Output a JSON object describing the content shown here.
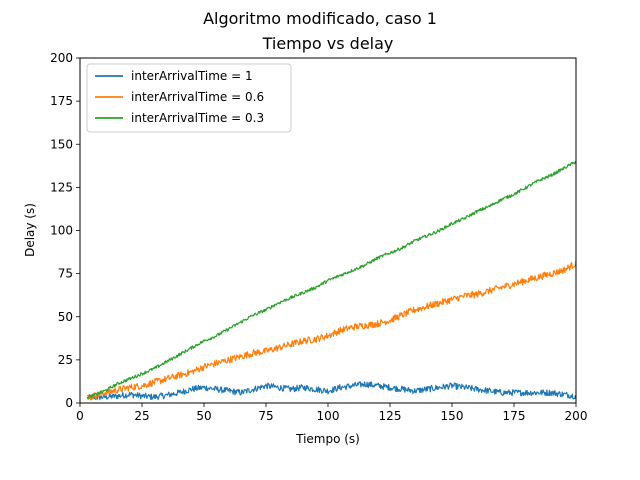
{
  "chart_data": {
    "type": "line",
    "suptitle": "Algoritmo modificado, caso 1",
    "title": "Tiempo vs delay",
    "xlabel": "Tiempo (s)",
    "ylabel": "Delay (s)",
    "xlim": [
      0,
      200
    ],
    "ylim": [
      0,
      200
    ],
    "xticks": [
      0,
      25,
      50,
      75,
      100,
      125,
      150,
      175,
      200
    ],
    "yticks": [
      0,
      25,
      50,
      75,
      100,
      125,
      150,
      175,
      200
    ],
    "grid": false,
    "legend_position": "top-left",
    "series": [
      {
        "name": "interArrivalTime = 1",
        "color": "#1f77b4",
        "x": [
          3,
          10,
          15,
          20,
          25,
          30,
          35,
          40,
          45,
          50,
          55,
          60,
          65,
          70,
          75,
          80,
          85,
          90,
          95,
          100,
          105,
          110,
          115,
          120,
          125,
          130,
          135,
          140,
          145,
          150,
          155,
          160,
          165,
          170,
          175,
          180,
          185,
          190,
          195,
          200
        ],
        "y": [
          3,
          3.5,
          4,
          5,
          4,
          3.5,
          4.5,
          6,
          8,
          9,
          8,
          7,
          6,
          8,
          10,
          9,
          8,
          9,
          8,
          7,
          9,
          10,
          11,
          10,
          9,
          8,
          7,
          8,
          9,
          10,
          9,
          8,
          7,
          6,
          6,
          6,
          6,
          6,
          5,
          4
        ],
        "noise": 1.8
      },
      {
        "name": "interArrivalTime = 0.6",
        "color": "#ff7f0e",
        "x": [
          3,
          10,
          15,
          20,
          25,
          30,
          35,
          40,
          45,
          50,
          55,
          60,
          65,
          70,
          75,
          80,
          85,
          90,
          95,
          100,
          105,
          110,
          115,
          120,
          125,
          130,
          135,
          140,
          145,
          150,
          155,
          160,
          165,
          170,
          175,
          180,
          185,
          190,
          195,
          200
        ],
        "y": [
          3,
          6,
          7.5,
          9,
          10,
          12,
          14,
          16,
          18,
          21,
          23,
          25,
          27,
          29,
          30,
          32,
          34,
          36,
          37,
          39,
          42,
          44,
          45,
          46,
          48,
          51,
          54,
          56,
          58,
          60,
          62,
          63,
          65,
          67,
          69,
          71,
          73,
          75,
          77,
          81
        ],
        "noise": 2.0
      },
      {
        "name": "interArrivalTime = 0.3",
        "color": "#2ca02c",
        "x": [
          3,
          10,
          15,
          20,
          25,
          30,
          35,
          40,
          45,
          50,
          55,
          60,
          65,
          70,
          75,
          80,
          85,
          90,
          95,
          100,
          105,
          110,
          115,
          120,
          125,
          130,
          135,
          140,
          145,
          150,
          155,
          160,
          165,
          170,
          175,
          180,
          185,
          190,
          195,
          200
        ],
        "y": [
          3,
          7,
          11,
          14,
          17,
          20,
          24,
          28,
          32,
          36,
          39,
          43,
          47,
          51,
          54,
          58,
          61,
          64,
          67,
          71,
          74,
          77,
          80,
          84,
          87,
          90,
          94,
          97,
          100,
          104,
          107,
          111,
          114,
          118,
          121,
          125,
          129,
          132,
          136,
          140
        ],
        "noise": 0.9
      }
    ]
  }
}
